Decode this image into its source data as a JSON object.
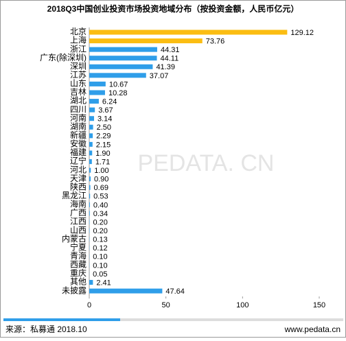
{
  "chart_data": {
    "type": "hbar",
    "title": "2018Q3中国创业投资市场投资地域分布（按投资金额，人民币亿元）",
    "categories": [
      "北京",
      "上海",
      "浙江",
      "广东(除深圳)",
      "深圳",
      "江苏",
      "山东",
      "吉林",
      "湖北",
      "四川",
      "河南",
      "湖南",
      "新疆",
      "安徽",
      "福建",
      "辽宁",
      "河北",
      "天津",
      "陕西",
      "黑龙江",
      "海南",
      "广西",
      "江西",
      "山西",
      "内蒙古",
      "宁夏",
      "青海",
      "西藏",
      "重庆",
      "其他",
      "未披露"
    ],
    "values": [
      129.12,
      73.76,
      44.31,
      44.11,
      41.39,
      37.07,
      10.67,
      10.28,
      6.24,
      3.67,
      3.14,
      2.5,
      2.29,
      2.15,
      1.9,
      1.71,
      1,
      0.9,
      0.69,
      0.53,
      0.4,
      0.34,
      0.2,
      0.2,
      0.13,
      0.12,
      0.1,
      0.1,
      0.05,
      2.41,
      47.64
    ],
    "value_labels": [
      "129.12",
      "73.76",
      "44.31",
      "44.11",
      "41.39",
      "37.07",
      "10.67",
      "10.28",
      "6.24",
      "3.67",
      "3.14",
      "2.50",
      "2.29",
      "2.15",
      "1.90",
      "1.71",
      "1.00",
      "0.90",
      "0.69",
      "0.53",
      "0.40",
      "0.34",
      "0.20",
      "0.20",
      "0.13",
      "0.12",
      "0.10",
      "0.10",
      "0.05",
      "2.41",
      "47.64"
    ],
    "colors": [
      "#fbbd12",
      "#fbbd12",
      "#2f9ee9",
      "#2f9ee9",
      "#2f9ee9",
      "#2f9ee9",
      "#2f9ee9",
      "#2f9ee9",
      "#2f9ee9",
      "#2f9ee9",
      "#2f9ee9",
      "#2f9ee9",
      "#2f9ee9",
      "#2f9ee9",
      "#2f9ee9",
      "#2f9ee9",
      "#2f9ee9",
      "#2f9ee9",
      "#2f9ee9",
      "#2f9ee9",
      "#2f9ee9",
      "#2f9ee9",
      "#2f9ee9",
      "#2f9ee9",
      "#2f9ee9",
      "#2f9ee9",
      "#2f9ee9",
      "#2f9ee9",
      "#2f9ee9",
      "#2f9ee9",
      "#2f9ee9"
    ],
    "xlim": [
      0,
      150
    ],
    "xticks": [
      0,
      50,
      100,
      150
    ],
    "watermark": "PEDATA. CN",
    "source": "来源：私募通 2018.10",
    "website": "www.pedata.cn"
  }
}
